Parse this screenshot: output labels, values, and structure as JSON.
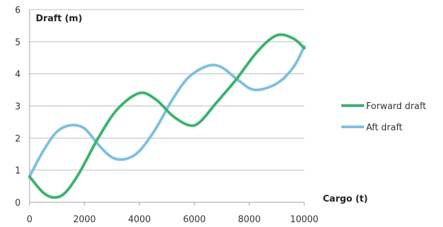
{
  "chart_data": {
    "type": "line",
    "title": "",
    "ylabel": "Draft (m)",
    "xlabel": "Cargo (t)",
    "xlim": [
      0,
      10000
    ],
    "ylim": [
      0,
      6
    ],
    "xticks": [
      0,
      2000,
      4000,
      6000,
      8000,
      10000
    ],
    "yticks": [
      0,
      1,
      2,
      3,
      4,
      5,
      6
    ],
    "grid": "horizontal",
    "legend": "right",
    "series": [
      {
        "name": "Forward draft",
        "color": "#3cb371",
        "x": [
          0,
          500,
          900,
          1300,
          1800,
          2500,
          3200,
          4000,
          4600,
          5200,
          5800,
          6200,
          6800,
          7500,
          8300,
          9000,
          9600,
          10000
        ],
        "y": [
          0.8,
          0.3,
          0.15,
          0.3,
          0.9,
          2.0,
          2.9,
          3.4,
          3.2,
          2.7,
          2.4,
          2.5,
          3.1,
          3.8,
          4.7,
          5.2,
          5.1,
          4.8
        ]
      },
      {
        "name": "Aft draft",
        "color": "#7ec0e0",
        "x": [
          0,
          500,
          1000,
          1500,
          2000,
          2500,
          3000,
          3500,
          4000,
          4600,
          5200,
          5800,
          6500,
          7000,
          7600,
          8200,
          9000,
          9600,
          10000
        ],
        "y": [
          0.8,
          1.6,
          2.2,
          2.4,
          2.3,
          1.8,
          1.4,
          1.35,
          1.6,
          2.3,
          3.2,
          3.9,
          4.25,
          4.2,
          3.8,
          3.5,
          3.7,
          4.2,
          4.85
        ]
      }
    ]
  }
}
